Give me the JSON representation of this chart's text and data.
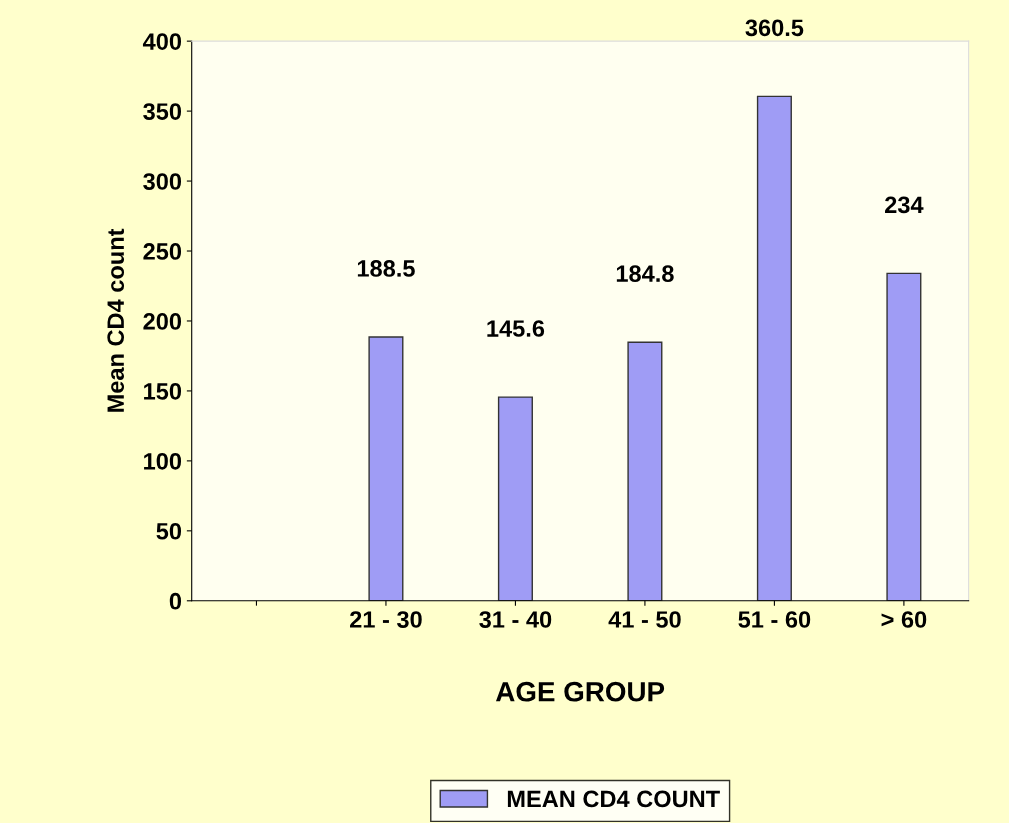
{
  "chart_data": {
    "type": "bar",
    "xlabel": "AGE GROUP",
    "ylabel": "Mean CD4 count",
    "categories": [
      null,
      "21 - 30",
      "31 - 40",
      "41 - 50",
      "51 - 60",
      "> 60"
    ],
    "series": [
      {
        "name": "MEAN CD4 COUNT",
        "color": "#9f9cf5",
        "values": [
          null,
          188.5,
          145.6,
          184.8,
          360.5,
          234
        ]
      }
    ],
    "ylim": [
      0,
      400
    ],
    "yticks": [
      0,
      50,
      100,
      150,
      200,
      250,
      300,
      350,
      400
    ],
    "data_labels": true,
    "grid": false,
    "legend": "bottom"
  }
}
